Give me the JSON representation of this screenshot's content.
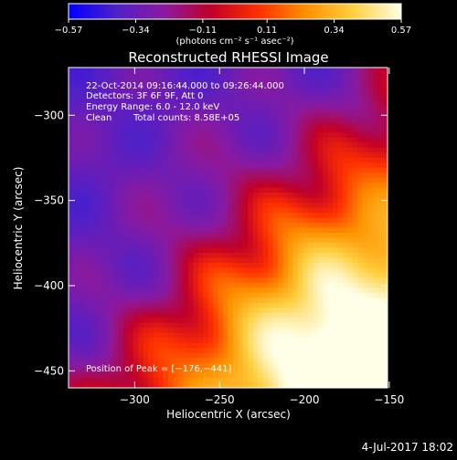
{
  "chart_data": {
    "type": "heatmap",
    "title": "Reconstructed RHESSI Image",
    "xlabel": "Heliocentric X (arcsec)",
    "ylabel": "Heliocentric Y (arcsec)",
    "xlim": [
      -339,
      -151
    ],
    "ylim": [
      -460,
      -272
    ],
    "x_ticks": [
      -300,
      -250,
      -200,
      -150
    ],
    "y_ticks": [
      -300,
      -350,
      -400,
      -450
    ],
    "x_tick_labels": [
      "−300",
      "−250",
      "−200",
      "−150"
    ],
    "y_tick_labels": [
      "−300",
      "−350",
      "−400",
      "−450"
    ],
    "colorbar": {
      "min": -0.57,
      "max": 0.57,
      "ticks": [
        -0.57,
        -0.34,
        -0.11,
        0.11,
        0.34,
        0.57
      ],
      "tick_labels": [
        "−0.57",
        "−0.34",
        "−0.11",
        "0.11",
        "0.34",
        "0.57"
      ],
      "unit_label": "(photons cm⁻² s⁻¹ asec⁻²)",
      "colormap": [
        "#0000ff",
        "#5020c8",
        "#8a1aa0",
        "#c00028",
        "#ff3000",
        "#ff9000",
        "#ffd040",
        "#ffffe8"
      ]
    },
    "peak": [
      -176,
      -441
    ]
  },
  "annotations": {
    "time_range": "22-Oct-2014 09:16:44.000 to 09:26:44.000",
    "detectors": "Detectors: 3F 6F 9F, Att 0",
    "energy_range": "Energy Range: 6.0 - 12.0 keV",
    "clean_label": "Clean",
    "total_counts": "Total counts: 8.58E+05",
    "peak_position": "Position of Peak = [−176,−441]"
  },
  "footer": {
    "date_stamp": "4-Jul-2017 18:02"
  }
}
